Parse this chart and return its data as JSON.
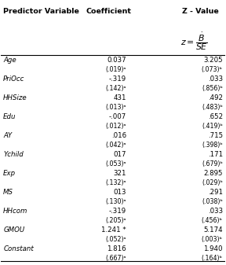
{
  "headers": [
    "Predictor Variable",
    "Coefficient",
    "Z - Value"
  ],
  "rows": [
    [
      "Age",
      "0.037",
      "3.205"
    ],
    [
      "",
      "(.019)ᵃ",
      "(.073)ᵇ"
    ],
    [
      "PriOcc",
      "-.319",
      ".033"
    ],
    [
      "",
      "(.142)ᵃ",
      "(.856)ᵇ"
    ],
    [
      "HHSize",
      "431",
      ".492"
    ],
    [
      "",
      "(.013)ᵃ",
      "(.483)ᵇ"
    ],
    [
      "Edu",
      "-.007",
      ".652"
    ],
    [
      "",
      "(.012)ᵃ",
      "(.419)ᵇ"
    ],
    [
      "AY",
      ".016",
      ".715"
    ],
    [
      "",
      "(.042)ᵃ",
      "(.398)ᵇ"
    ],
    [
      "Ychild",
      "017",
      ".171"
    ],
    [
      "",
      "(.053)ᵃ",
      "(.679)ᵇ"
    ],
    [
      "Exp",
      "321",
      "2.895"
    ],
    [
      "",
      "(.132)ᵃ",
      "(.029)ᵇ"
    ],
    [
      "MS",
      "013",
      ".291"
    ],
    [
      "",
      "(.130)ᵃ",
      "(.038)ᵇ"
    ],
    [
      "HHcom",
      "-.319",
      ".033"
    ],
    [
      "",
      "(.205)ᵃ",
      "(.456)ᵇ"
    ],
    [
      "GMOU",
      "1.241 *",
      "5.174"
    ],
    [
      "",
      "(.052)ᵃ",
      "(.003)ᵇ"
    ],
    [
      "Constant",
      "1.816",
      "1.940"
    ],
    [
      "",
      "(.667)ᵃ",
      "(.164)ᵇ"
    ]
  ],
  "italic_rows": [
    0,
    2,
    4,
    6,
    8,
    10,
    12,
    14,
    16,
    18,
    20
  ],
  "bg_color": "#ffffff",
  "text_color": "#000000",
  "font_size": 6.2,
  "header_font_size": 6.8
}
